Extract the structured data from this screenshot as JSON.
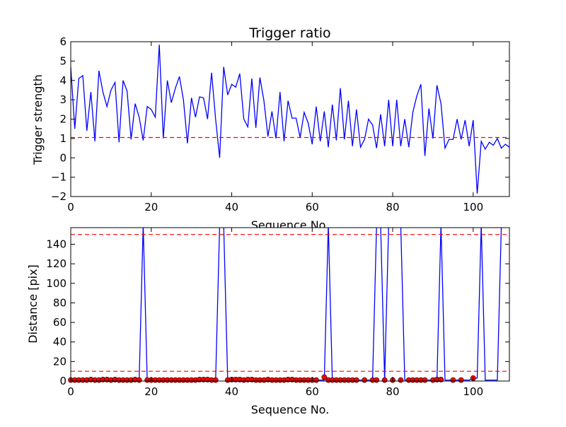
{
  "chart_data": [
    {
      "type": "line",
      "title": "Trigger ratio",
      "xlabel": "Sequence No.",
      "ylabel": "Trigger strength",
      "xlim": [
        0,
        109
      ],
      "ylim": [
        -2,
        6
      ],
      "xticks": [
        0,
        20,
        40,
        60,
        80,
        100
      ],
      "yticks": [
        -2,
        -1,
        0,
        1,
        2,
        3,
        4,
        5,
        6
      ],
      "grid": false,
      "series": [
        {
          "color": "#0000ff",
          "style": "solid",
          "x": [
            0,
            1,
            2,
            3,
            4,
            5,
            6,
            7,
            8,
            9,
            10,
            11,
            12,
            13,
            14,
            15,
            16,
            17,
            18,
            19,
            20,
            21,
            22,
            23,
            24,
            25,
            26,
            27,
            28,
            29,
            30,
            31,
            32,
            33,
            34,
            35,
            36,
            37,
            38,
            39,
            40,
            41,
            42,
            43,
            44,
            45,
            46,
            47,
            48,
            49,
            50,
            51,
            52,
            53,
            54,
            55,
            56,
            57,
            58,
            59,
            60,
            61,
            62,
            63,
            64,
            65,
            66,
            67,
            68,
            69,
            70,
            71,
            72,
            73,
            74,
            75,
            76,
            77,
            78,
            79,
            80,
            81,
            82,
            83,
            84,
            85,
            86,
            87,
            88,
            89,
            90,
            91,
            92,
            93,
            94,
            95,
            96,
            97,
            98,
            99,
            100,
            101,
            102,
            103,
            104,
            105,
            106,
            107,
            108,
            109
          ],
          "values": [
            4.7,
            1.5,
            4.1,
            4.25,
            1.4,
            3.4,
            0.85,
            4.5,
            3.4,
            2.65,
            3.5,
            3.9,
            0.8,
            4.0,
            3.45,
            0.95,
            2.8,
            2.1,
            0.9,
            2.65,
            2.5,
            2.1,
            5.85,
            1.0,
            4.0,
            2.85,
            3.6,
            4.2,
            3.0,
            0.75,
            3.1,
            2.1,
            3.15,
            3.1,
            2.0,
            4.4,
            2.0,
            0.0,
            4.7,
            3.25,
            3.8,
            3.65,
            4.35,
            2.0,
            1.6,
            4.1,
            1.55,
            4.15,
            2.95,
            1.1,
            2.4,
            1.0,
            3.4,
            0.85,
            2.95,
            2.05,
            2.05,
            1.05,
            2.35,
            1.8,
            0.7,
            2.65,
            0.85,
            2.4,
            0.55,
            2.75,
            0.9,
            3.6,
            0.95,
            2.95,
            0.6,
            2.5,
            0.55,
            0.95,
            2.0,
            1.7,
            0.5,
            2.25,
            0.6,
            3.0,
            0.6,
            3.0,
            0.6,
            2.0,
            0.55,
            2.35,
            3.2,
            3.8,
            0.1,
            2.55,
            1.0,
            3.75,
            2.8,
            0.5,
            0.95,
            0.95,
            2.0,
            0.95,
            1.95,
            0.6,
            1.95,
            -1.85,
            0.85,
            0.45,
            0.8,
            0.65,
            1.0,
            0.5,
            0.7,
            0.55
          ]
        },
        {
          "color": "#ff0000",
          "style": "dashed",
          "x": [
            0,
            109
          ],
          "values": [
            1.05,
            1.05
          ]
        }
      ]
    },
    {
      "type": "line",
      "xlabel": "Sequence No.",
      "ylabel": "Distance [pix]",
      "xlim": [
        0,
        109
      ],
      "ylim": [
        0,
        157
      ],
      "xticks": [
        0,
        20,
        40,
        60,
        80,
        100
      ],
      "yticks": [
        0,
        20,
        40,
        60,
        80,
        100,
        120,
        140
      ],
      "grid": false,
      "series": [
        {
          "color": "#0000ff",
          "style": "solid",
          "x": [
            0,
            1,
            2,
            3,
            4,
            5,
            6,
            7,
            8,
            9,
            10,
            11,
            12,
            13,
            14,
            15,
            16,
            17,
            18,
            19,
            20,
            21,
            22,
            23,
            24,
            25,
            26,
            27,
            28,
            29,
            30,
            31,
            32,
            33,
            34,
            35,
            36,
            37,
            38,
            39,
            40,
            41,
            42,
            43,
            44,
            45,
            46,
            47,
            48,
            49,
            50,
            51,
            52,
            53,
            54,
            55,
            56,
            57,
            58,
            59,
            60,
            61,
            62,
            63,
            64,
            65,
            66,
            67,
            68,
            69,
            70,
            71,
            72,
            73,
            74,
            75,
            76,
            77,
            78,
            79,
            80,
            81,
            82,
            83,
            84,
            85,
            86,
            87,
            88,
            89,
            90,
            91,
            92,
            93,
            94,
            95,
            96,
            97,
            98,
            99,
            100,
            101,
            102,
            103,
            104,
            105,
            106,
            107,
            108,
            109
          ],
          "values": [
            1.0,
            1.0,
            1.0,
            1.0,
            1.0,
            1.5,
            1.0,
            1.0,
            1.5,
            1.5,
            1.0,
            1.5,
            1.0,
            1.0,
            1.0,
            1.0,
            1.5,
            1.0,
            160,
            1.0,
            1.0,
            1.0,
            1.0,
            1.0,
            1.0,
            1.0,
            1.0,
            1.0,
            1.0,
            1.0,
            1.0,
            1.0,
            1.5,
            1.5,
            1.5,
            1.0,
            1.0,
            160,
            160,
            1.0,
            1.5,
            1.5,
            1.5,
            1.0,
            1.5,
            1.5,
            1.0,
            1.0,
            1.0,
            1.5,
            1.0,
            1.0,
            1.0,
            1.0,
            1.5,
            1.5,
            1.0,
            1.0,
            1.0,
            1.0,
            1.0,
            1.0,
            1.0,
            1.0,
            160,
            1.0,
            1.0,
            1.0,
            1.0,
            1.0,
            1.0,
            1.0,
            1.0,
            1.0,
            1.0,
            1.0,
            160,
            160,
            1.0,
            160,
            160,
            160,
            160,
            1.0,
            1.0,
            1.0,
            1.0,
            1.0,
            1.0,
            1.0,
            1.0,
            1.5,
            160,
            1.0,
            1.0,
            1.0,
            1.0,
            1.0,
            1.0,
            1.0,
            3.0,
            3.0,
            160,
            1.0,
            1.0,
            1.0,
            1.0,
            160,
            160,
            160
          ]
        },
        {
          "color": "#ff0000",
          "style": "markers",
          "x": [
            0,
            1,
            2,
            3,
            4,
            5,
            6,
            7,
            8,
            9,
            10,
            11,
            12,
            13,
            14,
            15,
            16,
            17,
            19,
            20,
            21,
            22,
            23,
            24,
            25,
            26,
            27,
            28,
            29,
            30,
            31,
            32,
            33,
            34,
            35,
            36,
            39,
            40,
            41,
            42,
            43,
            44,
            45,
            46,
            47,
            48,
            49,
            50,
            51,
            52,
            53,
            54,
            55,
            56,
            57,
            58,
            59,
            60,
            61,
            63,
            64,
            65,
            66,
            67,
            68,
            69,
            70,
            71,
            73,
            75,
            76,
            78,
            80,
            82,
            84,
            85,
            86,
            87,
            88,
            90,
            91,
            92,
            95,
            97,
            100
          ],
          "values": [
            1.0,
            1.0,
            1.0,
            1.0,
            1.0,
            1.5,
            1.0,
            1.0,
            1.5,
            1.5,
            1.0,
            1.5,
            1.0,
            1.0,
            1.0,
            1.0,
            1.5,
            1.0,
            1.0,
            1.0,
            1.0,
            1.0,
            1.0,
            1.0,
            1.0,
            1.0,
            1.0,
            1.0,
            1.0,
            1.0,
            1.0,
            1.5,
            1.5,
            1.5,
            1.0,
            1.0,
            1.0,
            1.5,
            1.5,
            1.5,
            1.0,
            1.5,
            1.5,
            1.0,
            1.0,
            1.0,
            1.5,
            1.0,
            1.0,
            1.0,
            1.0,
            1.5,
            1.5,
            1.0,
            1.0,
            1.0,
            1.0,
            1.0,
            1.0,
            4.0,
            1.0,
            1.0,
            1.0,
            1.0,
            1.0,
            1.0,
            1.0,
            1.0,
            1.0,
            1.0,
            1.0,
            1.0,
            1.0,
            1.0,
            1.0,
            1.0,
            1.0,
            1.0,
            1.0,
            1.0,
            1.5,
            1.5,
            1.0,
            1.0,
            3.0
          ]
        },
        {
          "color": "#ff0000",
          "style": "dashed",
          "x": [
            0,
            109
          ],
          "values": [
            150,
            150
          ]
        },
        {
          "color": "#ff0000",
          "style": "dashed",
          "x": [
            0,
            109
          ],
          "values": [
            10,
            10
          ]
        }
      ]
    }
  ]
}
